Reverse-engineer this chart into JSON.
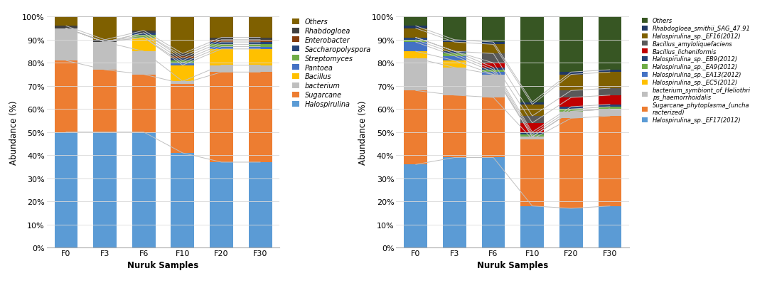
{
  "categories": [
    "F0",
    "F3",
    "F6",
    "F10",
    "F20",
    "F30"
  ],
  "genus_data": {
    "Halospirulina": [
      50,
      50,
      50,
      41,
      37,
      37
    ],
    "Sugarcane": [
      31,
      27,
      25,
      30,
      39,
      39
    ],
    "bacterium": [
      14,
      12,
      10,
      1,
      3,
      3
    ],
    "Bacillus": [
      0,
      0,
      6,
      7,
      7,
      7
    ],
    "Pantoea": [
      0,
      0,
      0,
      1,
      1,
      1
    ],
    "Streptomyces": [
      0,
      0,
      1,
      1,
      1,
      1
    ],
    "Saccharopolyspora": [
      0,
      0,
      1,
      1,
      1,
      1
    ],
    "Enterobacter": [
      0,
      0,
      0,
      1,
      1,
      1
    ],
    "Rhabdogloea": [
      1,
      1,
      1,
      1,
      1,
      1
    ],
    "Others": [
      4,
      10,
      6,
      16,
      9,
      9
    ]
  },
  "genus_colors": {
    "Halospirulina": "#5B9BD5",
    "Sugarcane": "#ED7D31",
    "bacterium": "#BFBFBF",
    "Bacillus": "#FFC000",
    "Pantoea": "#4472C4",
    "Streptomyces": "#70AD47",
    "Saccharopolyspora": "#264478",
    "Enterobacter": "#843C0C",
    "Rhabdogloea": "#404040",
    "Others": "#7F6000"
  },
  "genus_legend_order": [
    "Others",
    "Rhabdogloea",
    "Enterobacter",
    "Saccharopolyspora",
    "Streptomyces",
    "Pantoea",
    "Bacillus",
    "bacterium",
    "Sugarcane",
    "Halospirulina"
  ],
  "species_data": {
    "Halospirulina_sp_EF17": [
      36,
      39,
      39,
      18,
      17,
      18
    ],
    "Sugarcane_phytoplasma": [
      32,
      27,
      26,
      29,
      39,
      39
    ],
    "bacterium_symbiont": [
      14,
      12,
      10,
      1,
      3,
      3
    ],
    "Halospirulina_sp_EC5": [
      3,
      3,
      0,
      0,
      0,
      0
    ],
    "Halospirulina_sp_EA13": [
      4,
      2,
      1,
      0,
      0,
      0
    ],
    "Halospirulina_sp_EA9": [
      1,
      1,
      1,
      1,
      1,
      1
    ],
    "Halospirulina_sp_EB9": [
      1,
      1,
      1,
      1,
      1,
      1
    ],
    "Bacillus_licheniformis": [
      0,
      0,
      2,
      4,
      4,
      4
    ],
    "Bacillus_amyloliquefaciens": [
      0,
      0,
      4,
      3,
      3,
      3
    ],
    "Halospirulina_sp_EF16": [
      4,
      4,
      4,
      5,
      7,
      7
    ],
    "Rhabdogloea_smithii": [
      1,
      1,
      1,
      1,
      1,
      1
    ],
    "Others": [
      4,
      10,
      11,
      37,
      24,
      23
    ]
  },
  "species_colors": {
    "Halospirulina_sp_EF17": "#5B9BD5",
    "Sugarcane_phytoplasma": "#ED7D31",
    "bacterium_symbiont": "#BFBFBF",
    "Halospirulina_sp_EC5": "#FFC000",
    "Halospirulina_sp_EA13": "#4472C4",
    "Halospirulina_sp_EA9": "#70AD47",
    "Halospirulina_sp_EB9": "#264478",
    "Bacillus_licheniformis": "#C00000",
    "Bacillus_amyloliquefaciens": "#595959",
    "Halospirulina_sp_EF16": "#7F6000",
    "Rhabdogloea_smithii": "#203864",
    "Others": "#375623"
  },
  "species_legend_order": [
    "Others",
    "Rhabdogloea_smithii",
    "Halospirulina_sp_EF16",
    "Bacillus_amyloliquefaciens",
    "Bacillus_licheniformis",
    "Halospirulina_sp_EB9",
    "Halospirulina_sp_EA9",
    "Halospirulina_sp_EA13",
    "Halospirulina_sp_EC5",
    "bacterium_symbiont",
    "Sugarcane_phytoplasma",
    "Halospirulina_sp_EF17"
  ],
  "species_legend_labels": {
    "Others": "Others",
    "Rhabdogloea_smithii": "Rhabdogloea_smithii_SAG_47.91",
    "Halospirulina_sp_EF16": "Halospirulina_sp._EF16(2012)",
    "Bacillus_amyloliquefaciens": "Bacillus_amyloliquefaciens",
    "Bacillus_licheniformis": "Bacillus_licheniformis",
    "Halospirulina_sp_EB9": "Halospirulina_sp._EB9(2012)",
    "Halospirulina_sp_EA9": "Halospirulina_sp._EA9(2012)",
    "Halospirulina_sp_EA13": "Halospirulina_sp._EA13(2012)",
    "Halospirulina_sp_EC5": "Halospirulina_sp._EC5(2012)",
    "bacterium_symbiont": "bacterium_symbiont_of_Heliothri\nps_haemorrhoidalis",
    "Sugarcane_phytoplasma": "Sugarcane_phytoplasma_(uncha\nracterized)",
    "Halospirulina_sp_EF17": "Halospirulina_sp._EF17(2012)"
  },
  "xlabel": "Nuruk Samples",
  "ylabel": "Abundance (%)",
  "bg_color": "#FFFFFF"
}
